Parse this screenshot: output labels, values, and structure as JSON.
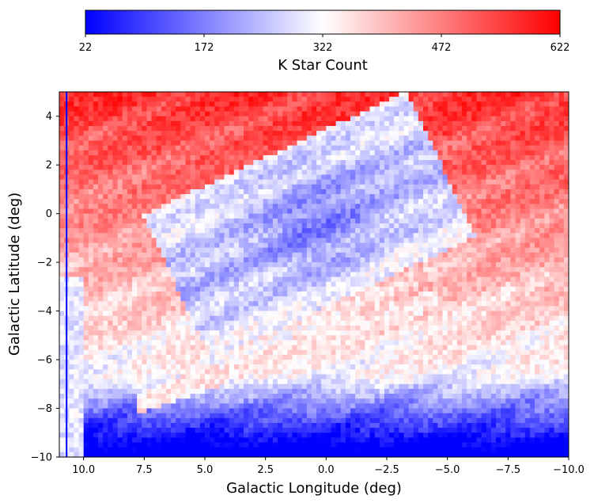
{
  "chart_data": {
    "type": "heatmap",
    "xlabel": "Galactic Longitude (deg)",
    "ylabel": "Galactic Latitude (deg)",
    "xlim": [
      11.0,
      -10.0
    ],
    "ylim": [
      -10,
      5
    ],
    "x_ticks": [
      10.0,
      7.5,
      5.0,
      2.5,
      0.0,
      -2.5,
      -5.0,
      -7.5,
      -10.0
    ],
    "x_tick_labels": [
      "10.0",
      "7.5",
      "5.0",
      "2.5",
      "0.0",
      "−2.5",
      "−5.0",
      "−7.5",
      "−10.0"
    ],
    "y_ticks": [
      4,
      2,
      0,
      -2,
      -4,
      -6,
      -8,
      -10
    ],
    "y_tick_labels": [
      "4",
      "2",
      "0",
      "−2",
      "−4",
      "−6",
      "−8",
      "−10"
    ],
    "colorbar": {
      "label": "K Star Count",
      "orientation": "horizontal",
      "placement": "top",
      "min": 22,
      "max": 622,
      "ticks": [
        22,
        172,
        322,
        472,
        622
      ],
      "tick_labels": [
        "22",
        "172",
        "322",
        "472",
        "622"
      ],
      "colormap": "bwr",
      "color_low": "#0000ff",
      "color_mid": "#ffffff",
      "color_high": "#ff0000"
    },
    "colormap": "bwr",
    "grid": false,
    "value_range": [
      22,
      622
    ],
    "field_description": [
      {
        "region": "tilted central rectangle",
        "l_range": [
          -5.5,
          6.5
        ],
        "b_range": [
          -5.5,
          5.0
        ],
        "level": "low"
      },
      {
        "region": "upper field",
        "l_range": [
          -10,
          10
        ],
        "b_range": [
          1,
          5
        ],
        "level": "high"
      },
      {
        "region": "mid-left wedge",
        "l_range": [
          4,
          11
        ],
        "b_range": [
          -6,
          1
        ],
        "level": "high"
      },
      {
        "region": "lower band",
        "l_range": [
          -10,
          11
        ],
        "b_range": [
          -10,
          -7
        ],
        "level": "low"
      }
    ]
  }
}
